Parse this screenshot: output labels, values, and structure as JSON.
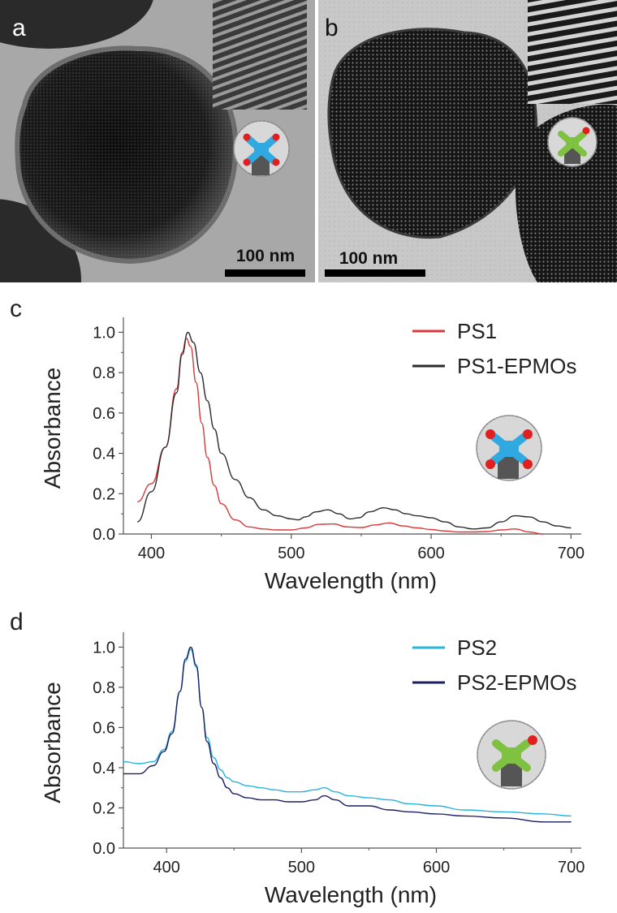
{
  "panels": {
    "a": {
      "letter": "a",
      "scale_label": "100 nm"
    },
    "b": {
      "letter": "b",
      "scale_label": "100 nm"
    },
    "c": {
      "letter": "c"
    },
    "d": {
      "letter": "d"
    }
  },
  "colors": {
    "ps1": "#d9383a",
    "ps1_epmos": "#2b2b2b",
    "ps2": "#29b3dc",
    "ps2_epmos": "#1c1f63",
    "blue_core": "#2fa9e0",
    "green_core": "#7fc242",
    "red_dot": "#e0201e"
  },
  "chart_data": [
    {
      "type": "line",
      "panel": "c",
      "xlabel": "Wavelength (nm)",
      "ylabel": "Absorbance",
      "xlim": [
        380,
        705
      ],
      "ylim": [
        0,
        1.05
      ],
      "xticks": [
        400,
        500,
        600,
        700
      ],
      "yticks": [
        0.0,
        0.2,
        0.4,
        0.6,
        0.8,
        1.0
      ],
      "ytick_labels": [
        "0.0",
        "0.2",
        "0.4",
        "0.6",
        "0.8",
        "1.0"
      ],
      "legend_position": "top-right",
      "series": [
        {
          "name": "PS1",
          "color_key": "ps1",
          "x": [
            390,
            400,
            410,
            418,
            422,
            425,
            428,
            432,
            436,
            440,
            445,
            450,
            460,
            470,
            480,
            490,
            500,
            510,
            520,
            530,
            540,
            550,
            560,
            570,
            580,
            590,
            600,
            610,
            620,
            630,
            640,
            650,
            660,
            670,
            680
          ],
          "y": [
            0.16,
            0.25,
            0.43,
            0.72,
            0.9,
            0.97,
            0.93,
            0.75,
            0.55,
            0.38,
            0.24,
            0.15,
            0.07,
            0.035,
            0.025,
            0.02,
            0.02,
            0.03,
            0.048,
            0.05,
            0.035,
            0.032,
            0.045,
            0.055,
            0.04,
            0.03,
            0.022,
            0.015,
            0.01,
            0.01,
            0.012,
            0.02,
            0.025,
            0.01,
            0.0
          ]
        },
        {
          "name": "PS1-EPMOs",
          "color_key": "ps1_epmos",
          "x": [
            390,
            400,
            410,
            418,
            422,
            426,
            430,
            435,
            440,
            445,
            450,
            460,
            470,
            480,
            490,
            500,
            505,
            510,
            518,
            526,
            534,
            542,
            548,
            556,
            566,
            574,
            582,
            590,
            600,
            610,
            620,
            630,
            640,
            650,
            660,
            670,
            680,
            690,
            700
          ],
          "y": [
            0.06,
            0.21,
            0.43,
            0.7,
            0.89,
            1.0,
            0.95,
            0.8,
            0.66,
            0.52,
            0.4,
            0.27,
            0.18,
            0.12,
            0.09,
            0.075,
            0.07,
            0.085,
            0.11,
            0.12,
            0.1,
            0.075,
            0.08,
            0.11,
            0.13,
            0.12,
            0.1,
            0.09,
            0.08,
            0.06,
            0.035,
            0.025,
            0.03,
            0.06,
            0.09,
            0.085,
            0.06,
            0.04,
            0.03
          ]
        }
      ]
    },
    {
      "type": "line",
      "panel": "d",
      "xlabel": "Wavelength (nm)",
      "ylabel": "Absorbance",
      "xlim": [
        368,
        705
      ],
      "ylim": [
        0,
        1.05
      ],
      "xticks": [
        400,
        500,
        600,
        700
      ],
      "yticks": [
        0.0,
        0.2,
        0.4,
        0.6,
        0.8,
        1.0
      ],
      "ytick_labels": [
        "0.0",
        "0.2",
        "0.4",
        "0.6",
        "0.8",
        "1.0"
      ],
      "legend_position": "top-right",
      "series": [
        {
          "name": "PS2",
          "color_key": "ps2",
          "x": [
            368,
            380,
            390,
            398,
            404,
            410,
            414,
            418,
            422,
            426,
            430,
            435,
            440,
            445,
            450,
            460,
            470,
            480,
            490,
            500,
            510,
            517,
            525,
            535,
            550,
            565,
            580,
            600,
            620,
            650,
            680,
            700
          ],
          "y": [
            0.43,
            0.42,
            0.43,
            0.49,
            0.58,
            0.78,
            0.93,
            0.99,
            0.9,
            0.7,
            0.55,
            0.45,
            0.39,
            0.35,
            0.33,
            0.31,
            0.3,
            0.29,
            0.28,
            0.28,
            0.29,
            0.3,
            0.28,
            0.26,
            0.25,
            0.24,
            0.22,
            0.21,
            0.19,
            0.18,
            0.17,
            0.16
          ]
        },
        {
          "name": "PS2-EPMOs",
          "color_key": "ps2_epmos",
          "x": [
            368,
            380,
            390,
            398,
            404,
            410,
            414,
            418,
            422,
            426,
            430,
            435,
            440,
            445,
            450,
            460,
            470,
            480,
            490,
            500,
            510,
            517,
            525,
            535,
            550,
            565,
            580,
            600,
            620,
            650,
            680,
            700
          ],
          "y": [
            0.37,
            0.37,
            0.41,
            0.48,
            0.57,
            0.78,
            0.94,
            1.0,
            0.91,
            0.7,
            0.53,
            0.42,
            0.35,
            0.3,
            0.27,
            0.25,
            0.24,
            0.24,
            0.23,
            0.23,
            0.24,
            0.26,
            0.24,
            0.21,
            0.21,
            0.19,
            0.18,
            0.17,
            0.16,
            0.15,
            0.13,
            0.13
          ]
        }
      ]
    }
  ]
}
